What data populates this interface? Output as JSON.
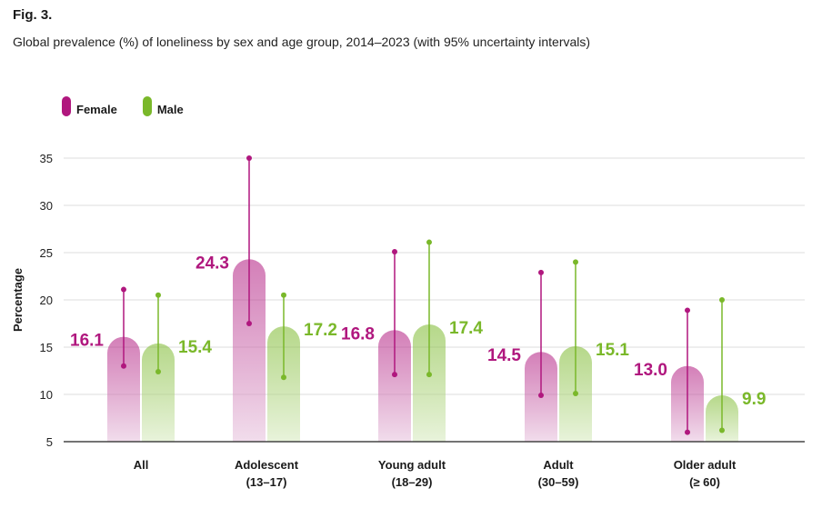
{
  "header": {
    "fig_label": "Fig. 3.",
    "subtitle": "Global prevalence (%) of loneliness by sex and age group, 2014–2023 (with 95% uncertainty intervals)"
  },
  "legend": [
    {
      "name": "Female",
      "color": "#b0177e"
    },
    {
      "name": "Male",
      "color": "#7ab82a"
    }
  ],
  "chart_data": {
    "type": "bar",
    "ylabel": "Percentage",
    "ylim": [
      5,
      35
    ],
    "yticks": [
      5,
      10,
      15,
      20,
      25,
      30,
      35
    ],
    "grid": true,
    "legend_position": "top-left",
    "categories": [
      {
        "line1": "All",
        "line2": ""
      },
      {
        "line1": "Adolescent",
        "line2": "(13–17)"
      },
      {
        "line1": "Young adult",
        "line2": "(18–29)"
      },
      {
        "line1": "Adult",
        "line2": "(30–59)"
      },
      {
        "line1": "Older adult",
        "line2": "(≥ 60)"
      }
    ],
    "series": [
      {
        "name": "Female",
        "color": "#b0177e",
        "light": "#e8c6df",
        "values": [
          16.1,
          24.3,
          16.8,
          14.5,
          13.0
        ],
        "labels": [
          "16.1",
          "24.3",
          "16.8",
          "14.5",
          "13.0"
        ],
        "lower": [
          13.0,
          17.5,
          12.1,
          9.9,
          6.0
        ],
        "upper": [
          21.1,
          35.0,
          25.1,
          22.9,
          18.9
        ]
      },
      {
        "name": "Male",
        "color": "#7ab82a",
        "light": "#d9ebc3",
        "values": [
          15.4,
          17.2,
          17.4,
          15.1,
          9.9
        ],
        "labels": [
          "15.4",
          "17.2",
          "17.4",
          "15.1",
          "9.9"
        ],
        "lower": [
          12.4,
          11.8,
          12.1,
          10.1,
          6.2
        ],
        "upper": [
          20.5,
          20.5,
          26.1,
          24.0,
          20.0
        ]
      }
    ]
  }
}
